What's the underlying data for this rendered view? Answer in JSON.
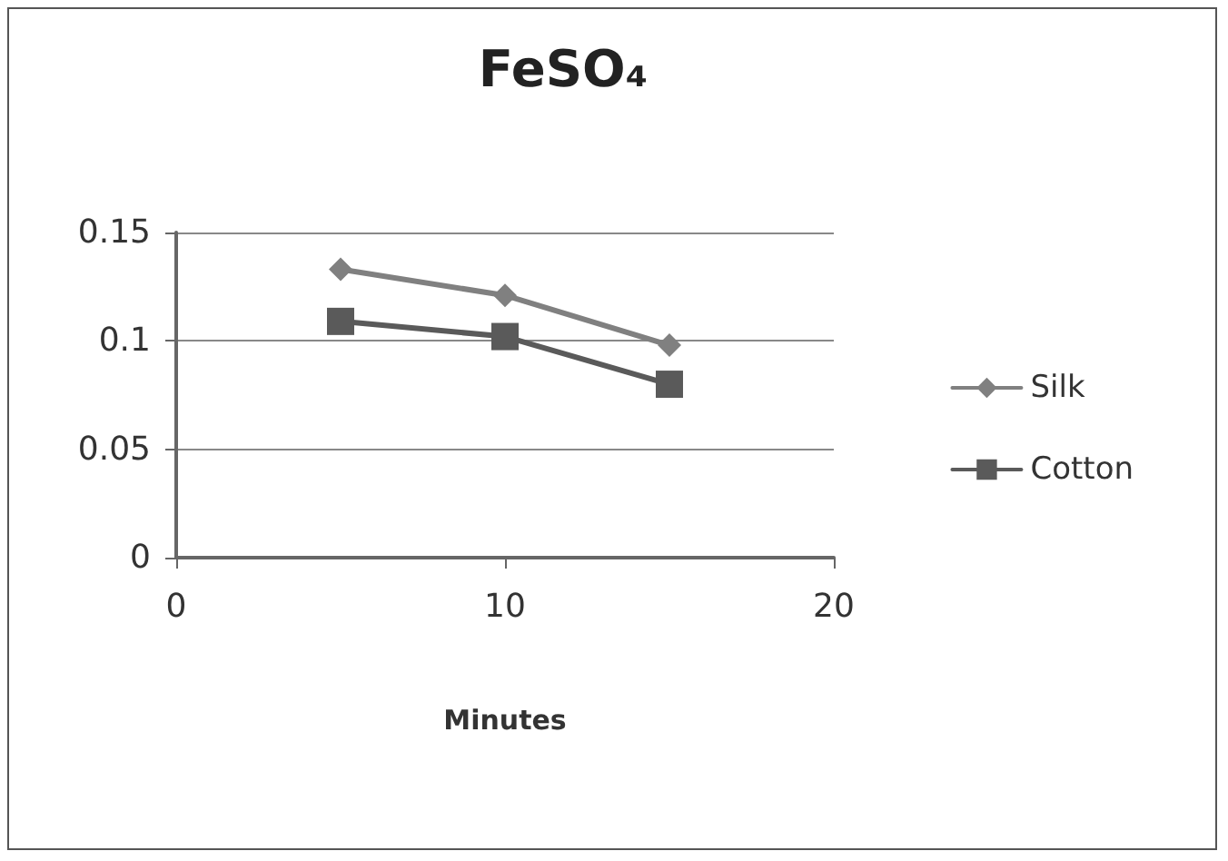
{
  "chart_data": {
    "type": "line",
    "title": "FeSO₄",
    "xlabel": "Minutes",
    "xlim": [
      0,
      20
    ],
    "xticks": [
      0,
      10,
      20
    ],
    "ylim": [
      0,
      0.15
    ],
    "yticks": [
      0,
      0.05,
      0.1,
      0.15
    ],
    "x": [
      5,
      10,
      15
    ],
    "series": [
      {
        "name": "Silk",
        "color": "#808080",
        "marker": "diamond",
        "values": [
          0.133,
          0.121,
          0.098
        ]
      },
      {
        "name": "Cotton",
        "color": "#5a5a5a",
        "marker": "square",
        "values": [
          0.109,
          0.102,
          0.08
        ]
      }
    ],
    "grid": "y",
    "legend": "right",
    "line_style": "solid"
  }
}
